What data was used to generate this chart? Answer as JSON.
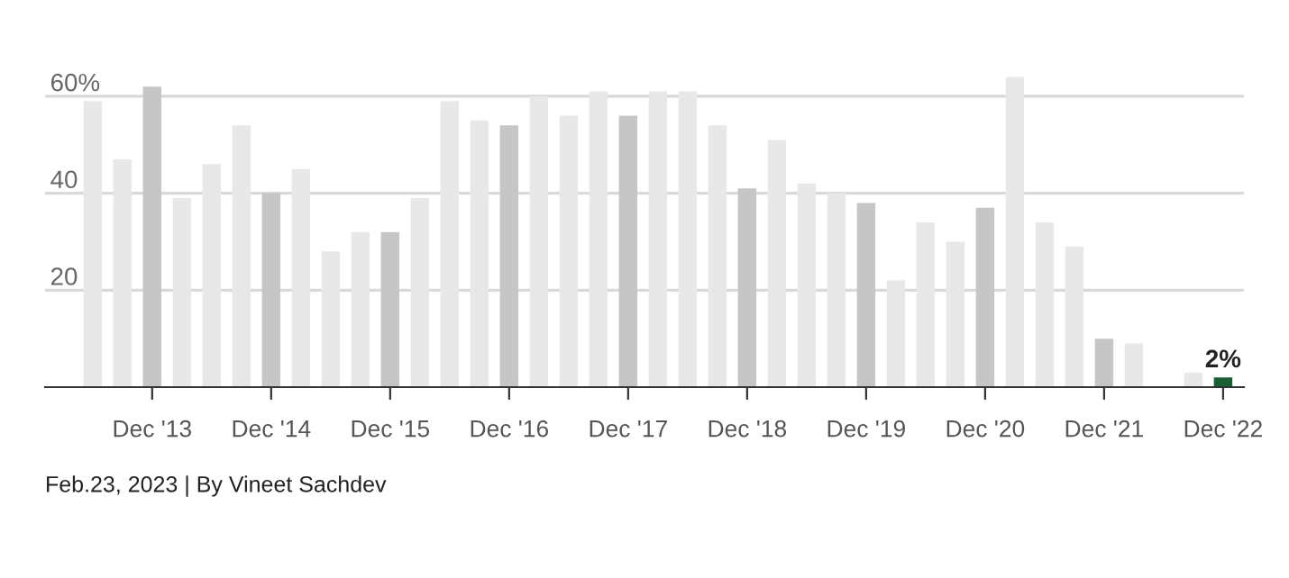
{
  "chart_data": {
    "type": "bar",
    "categories": [
      null,
      null,
      "Dec '13",
      null,
      null,
      null,
      "Dec '14",
      null,
      null,
      null,
      "Dec '15",
      null,
      null,
      null,
      "Dec '16",
      null,
      null,
      null,
      "Dec '17",
      null,
      null,
      null,
      "Dec '18",
      null,
      null,
      null,
      "Dec '19",
      null,
      null,
      null,
      "Dec '20",
      null,
      null,
      null,
      "Dec '21",
      null,
      null,
      null,
      "Dec '22"
    ],
    "values": [
      59,
      47,
      62,
      39,
      46,
      54,
      40,
      45,
      28,
      32,
      32,
      39,
      59,
      55,
      54,
      60,
      56,
      61,
      56,
      61,
      61,
      54,
      41,
      51,
      42,
      40,
      38,
      22,
      34,
      30,
      37,
      64,
      34,
      29,
      10,
      9,
      null,
      3,
      2
    ],
    "colors": [
      "#e8e8e8",
      "#e8e8e8",
      "#c6c6c6",
      "#e8e8e8",
      "#e8e8e8",
      "#e8e8e8",
      "#c6c6c6",
      "#e8e8e8",
      "#e8e8e8",
      "#e8e8e8",
      "#c6c6c6",
      "#e8e8e8",
      "#e8e8e8",
      "#e8e8e8",
      "#c6c6c6",
      "#e8e8e8",
      "#e8e8e8",
      "#e8e8e8",
      "#c6c6c6",
      "#e8e8e8",
      "#e8e8e8",
      "#e8e8e8",
      "#c6c6c6",
      "#e8e8e8",
      "#e8e8e8",
      "#e8e8e8",
      "#c6c6c6",
      "#e8e8e8",
      "#e8e8e8",
      "#e8e8e8",
      "#c6c6c6",
      "#e8e8e8",
      "#e8e8e8",
      "#e8e8e8",
      "#c6c6c6",
      "#e8e8e8",
      "#e8e8e8",
      "#e8e8e8",
      "#1a5e34"
    ],
    "value_labels": [
      null,
      null,
      null,
      null,
      null,
      null,
      null,
      null,
      null,
      null,
      null,
      null,
      null,
      null,
      null,
      null,
      null,
      null,
      null,
      null,
      null,
      null,
      null,
      null,
      null,
      null,
      null,
      null,
      null,
      null,
      null,
      null,
      null,
      null,
      null,
      null,
      null,
      null,
      "2%"
    ],
    "ylim": [
      0,
      65
    ],
    "yticks": [
      20,
      40,
      {
        "value": 60,
        "label": "60%"
      }
    ],
    "grid": "y",
    "annotations": [
      "Feb.23, 2023 | By Vineet Sachdev"
    ]
  }
}
